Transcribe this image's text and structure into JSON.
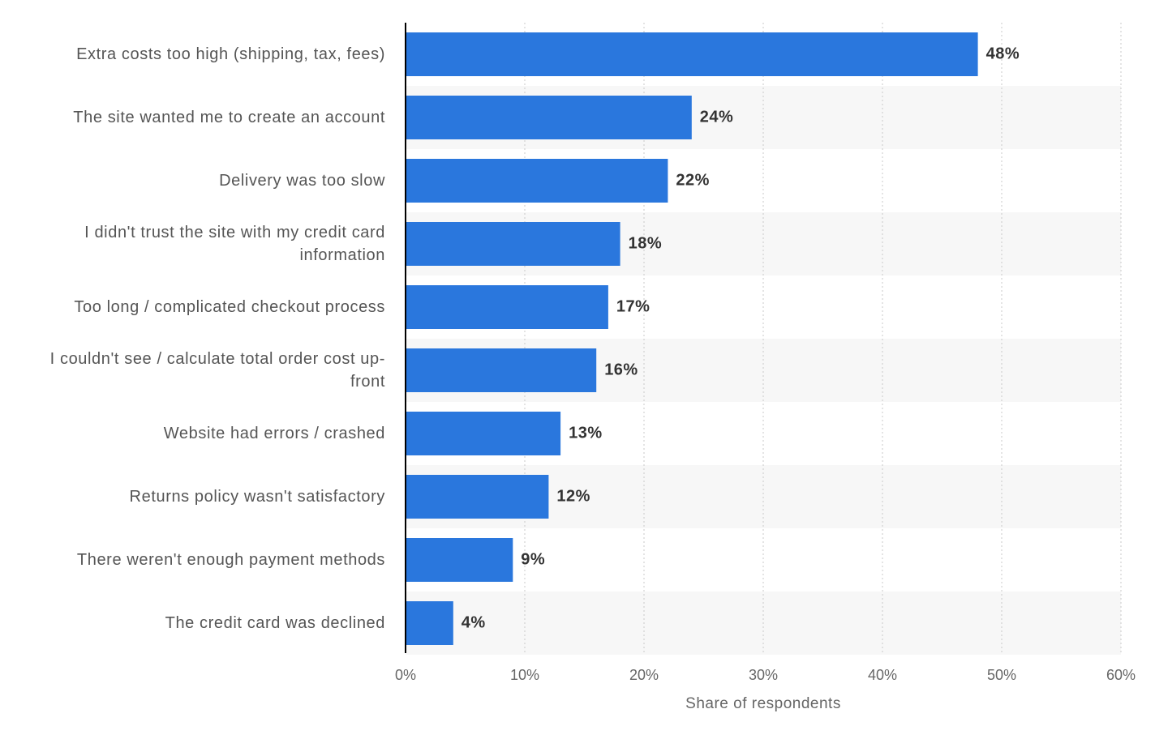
{
  "chart_data": {
    "type": "bar",
    "orientation": "horizontal",
    "categories": [
      "Extra costs too high (shipping, tax, fees)",
      "The site wanted me to create an account",
      "Delivery was too slow",
      "I didn't trust the site with my credit card information",
      "Too long / complicated checkout process",
      "I couldn't see / calculate total order cost up-front",
      "Website had errors / crashed",
      "Returns policy wasn't satisfactory",
      "There weren't enough payment methods",
      "The credit card was declined"
    ],
    "values": [
      48,
      24,
      22,
      18,
      17,
      16,
      13,
      12,
      9,
      4
    ],
    "value_labels": [
      "48%",
      "24%",
      "22%",
      "18%",
      "17%",
      "16%",
      "13%",
      "12%",
      "9%",
      "4%"
    ],
    "color": "#2a77dd",
    "xlabel": "Share of respondents",
    "xlim": [
      0,
      60
    ],
    "xticks": [
      {
        "value": 0,
        "label": "0%"
      },
      {
        "value": 10,
        "label": "10%"
      },
      {
        "value": 20,
        "label": "20%"
      },
      {
        "value": 30,
        "label": "30%"
      },
      {
        "value": 40,
        "label": "40%"
      },
      {
        "value": 50,
        "label": "50%"
      },
      {
        "value": 60,
        "label": "60%"
      }
    ],
    "grid": true
  }
}
